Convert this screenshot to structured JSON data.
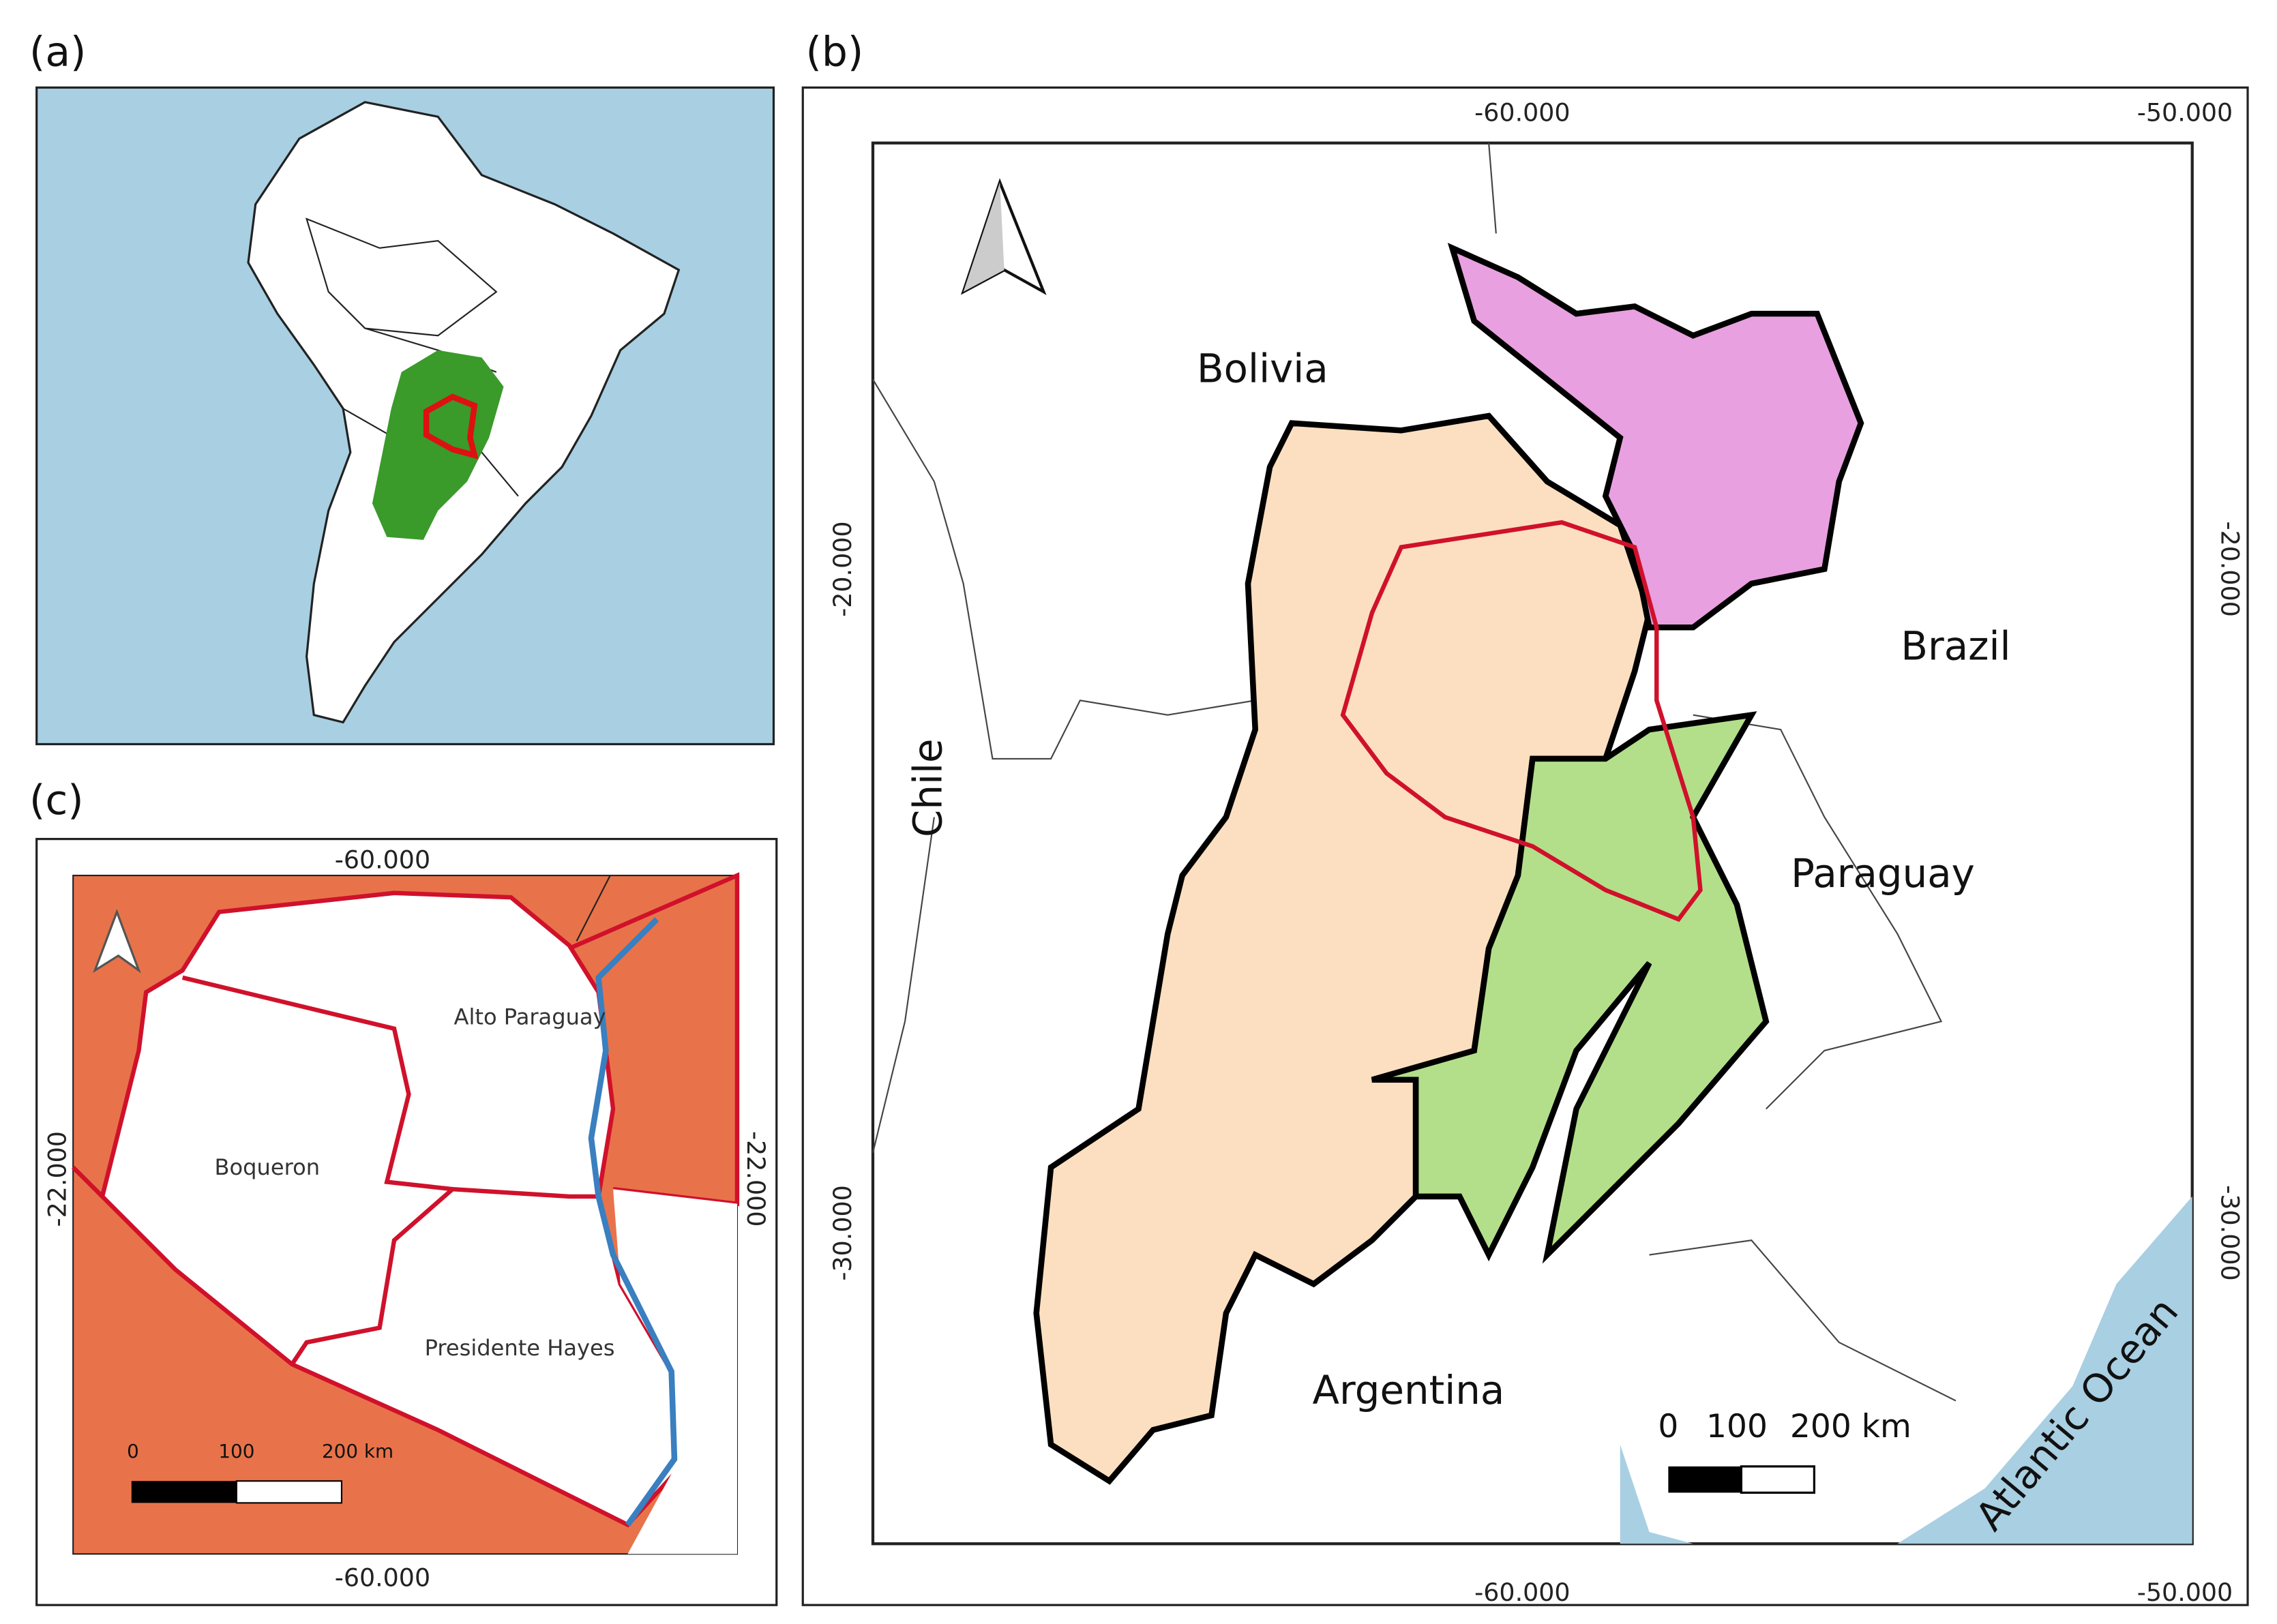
{
  "panels": [
    {
      "label": "(a)"
    },
    {
      "label": "(b)",
      "top_ticks": [
        "-60.000",
        "-50.000"
      ],
      "bottom_ticks": [
        "-60.000",
        "-50.000"
      ],
      "left_ticks": [
        "-20.000",
        "-30.000"
      ],
      "right_ticks": [
        "-20.000",
        "-30.000"
      ],
      "places": [
        "Bolivia",
        "Brazil",
        "Chile",
        "Paraguay",
        "Argentina",
        "Atlantic Ocean"
      ],
      "scale_bar": [
        "0",
        "100",
        "200 km"
      ]
    },
    {
      "label": "(c)",
      "top_ticks": [
        "-60.000"
      ],
      "bottom_ticks": [
        "-60.000"
      ],
      "left_ticks": [
        "-22.000"
      ],
      "right_ticks": [
        "-22.000"
      ],
      "places": [
        "Alto Paraguay",
        "Boqueron",
        "Presidente Hayes"
      ],
      "scale_bar": [
        "0",
        "100",
        "200 km"
      ]
    }
  ]
}
